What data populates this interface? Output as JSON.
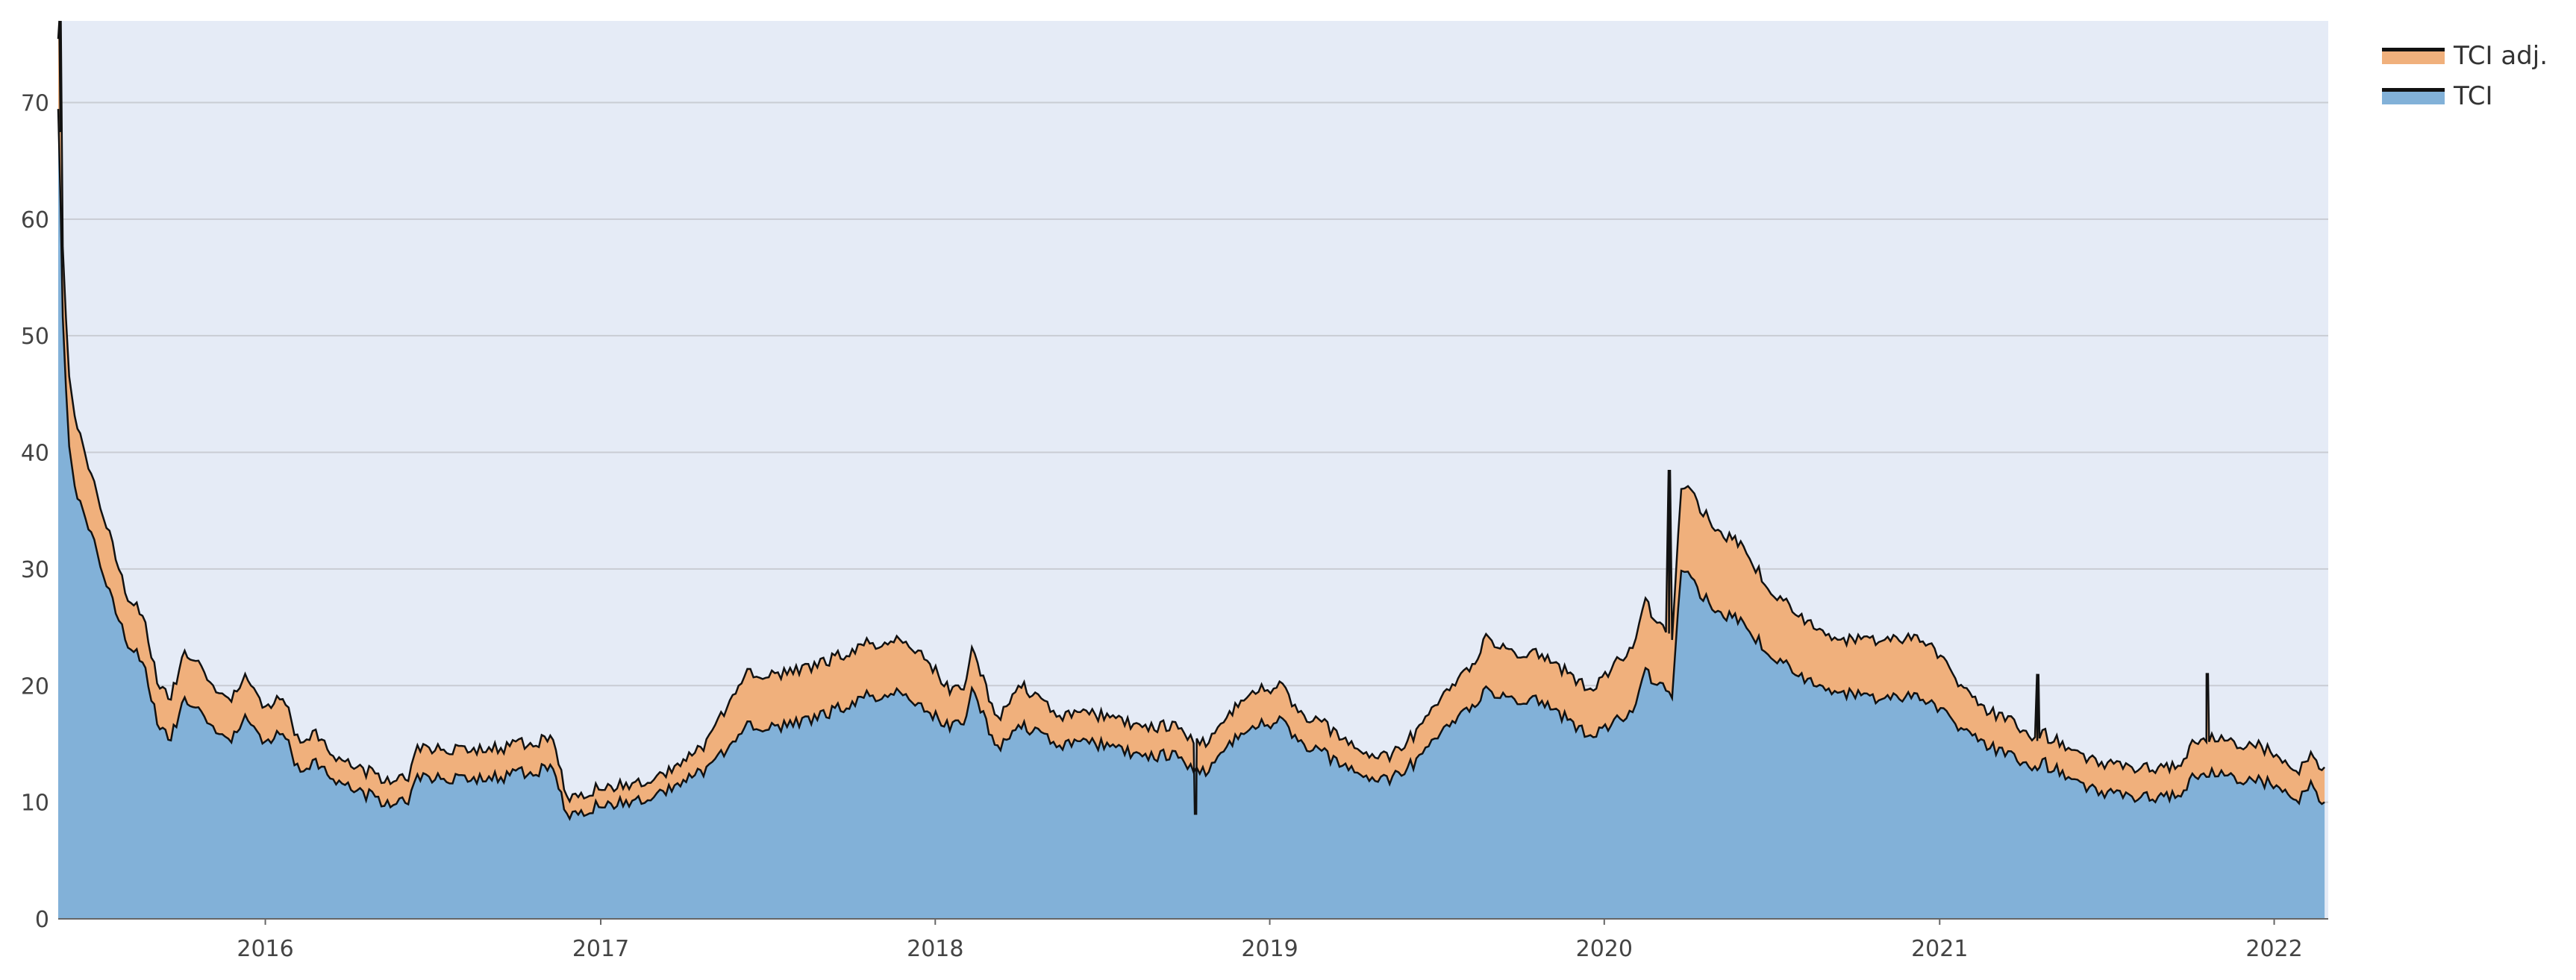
{
  "chart_data": {
    "type": "area",
    "stacked": true,
    "title": "",
    "xlabel": "",
    "ylabel": "",
    "xlim": [
      "2015-05-20",
      "2022-03-01"
    ],
    "ylim": [
      0,
      77
    ],
    "grid": true,
    "legend_position": "top-right",
    "y_ticks": [
      0,
      10,
      20,
      30,
      40,
      50,
      60,
      70
    ],
    "x_ticks": [
      {
        "label": "2016",
        "date": "2016-01-01"
      },
      {
        "label": "2017",
        "date": "2017-01-01"
      },
      {
        "label": "2018",
        "date": "2018-01-01"
      },
      {
        "label": "2019",
        "date": "2019-01-01"
      },
      {
        "label": "2020",
        "date": "2020-01-01"
      },
      {
        "label": "2021",
        "date": "2021-01-01"
      },
      {
        "label": "2022",
        "date": "2022-01-01"
      }
    ],
    "x": [
      "2015-05-20",
      "2015-05-25",
      "2015-06-01",
      "2015-06-10",
      "2015-06-25",
      "2015-07-15",
      "2015-08-01",
      "2015-08-20",
      "2015-09-05",
      "2015-09-20",
      "2015-10-05",
      "2015-10-20",
      "2015-11-05",
      "2015-11-25",
      "2015-12-10",
      "2016-01-01",
      "2016-01-20",
      "2016-02-05",
      "2016-02-25",
      "2016-03-15",
      "2016-04-10",
      "2016-05-10",
      "2016-06-05",
      "2016-06-15",
      "2016-07-20",
      "2016-09-01",
      "2016-10-10",
      "2016-11-10",
      "2016-11-25",
      "2016-12-20",
      "2017-02-01",
      "2017-03-10",
      "2017-04-20",
      "2017-05-25",
      "2017-06-10",
      "2017-07-20",
      "2017-09-01",
      "2017-10-15",
      "2017-11-20",
      "2017-12-20",
      "2018-01-20",
      "2018-02-01",
      "2018-02-10",
      "2018-03-10",
      "2018-04-05",
      "2018-04-20",
      "2018-05-20",
      "2018-07-01",
      "2018-08-15",
      "2018-09-20",
      "2018-10-10",
      "2018-10-20",
      "2018-11-15",
      "2018-12-10",
      "2019-01-15",
      "2019-02-01",
      "2019-03-05",
      "2019-04-10",
      "2019-05-15",
      "2019-06-10",
      "2019-07-10",
      "2019-08-10",
      "2019-08-25",
      "2019-09-25",
      "2019-10-25",
      "2019-11-25",
      "2019-12-20",
      "2020-01-15",
      "2020-02-01",
      "2020-02-15",
      "2020-03-05",
      "2020-03-15",
      "2020-03-25",
      "2020-04-05",
      "2020-05-01",
      "2020-06-01",
      "2020-07-01",
      "2020-08-10",
      "2020-09-15",
      "2020-10-20",
      "2020-12-01",
      "2020-12-20",
      "2021-01-15",
      "2021-02-15",
      "2021-03-20",
      "2021-04-15",
      "2021-04-20",
      "2021-05-15",
      "2021-06-20",
      "2021-07-20",
      "2021-08-15",
      "2021-09-15",
      "2021-10-10",
      "2021-10-25",
      "2021-11-01",
      "2021-11-25",
      "2021-12-15",
      "2022-01-10",
      "2022-01-25",
      "2022-02-10",
      "2022-02-25"
    ],
    "series": [
      {
        "name": "TCI",
        "color": "#82b1d8",
        "values": [
          70,
          52,
          40,
          36,
          33,
          28,
          24,
          22,
          17,
          15.5,
          19,
          18,
          16,
          15.5,
          17.5,
          15,
          16,
          13,
          13.5,
          12,
          11,
          10,
          10,
          12,
          12,
          12,
          12.5,
          13,
          9,
          9.5,
          10,
          11,
          12.5,
          15,
          16.5,
          16.5,
          17.5,
          19,
          19.5,
          18,
          16.5,
          17,
          19.5,
          14.5,
          16.5,
          16,
          15,
          15,
          14,
          14,
          13,
          12.5,
          15,
          16.5,
          17,
          15,
          14,
          12,
          12,
          13.5,
          16,
          18.5,
          19.5,
          19,
          18.5,
          17,
          15.5,
          17,
          17.5,
          21,
          20,
          19,
          30,
          29,
          26.5,
          25.5,
          22.5,
          20.5,
          19.5,
          19,
          19,
          18.5,
          17,
          15,
          14,
          13,
          13.5,
          12.5,
          11,
          10.5,
          10.5,
          10.5,
          12.5,
          12.5,
          12.5,
          12,
          12,
          11,
          10,
          11.5,
          10
        ]
      },
      {
        "name": "TCI adj.",
        "color": "#f0b07c",
        "values": [
          6,
          6,
          6,
          6,
          5,
          5,
          4,
          4,
          3.5,
          3.5,
          4,
          4,
          3.5,
          3.5,
          3.5,
          3,
          3,
          2.5,
          2.5,
          2,
          2,
          2,
          2,
          2.5,
          2.5,
          2.5,
          2.5,
          2.5,
          1.5,
          1.5,
          1.5,
          1.5,
          2,
          4,
          4.5,
          4.5,
          4.5,
          4.5,
          4.5,
          4.5,
          3,
          3,
          3.5,
          2.5,
          3.5,
          3,
          2.5,
          2.5,
          2.5,
          2.5,
          2.5,
          2.5,
          2.5,
          3,
          3,
          2.5,
          2.5,
          2,
          2,
          2.5,
          3,
          3.5,
          4.5,
          4,
          4,
          4,
          4,
          5,
          5.5,
          6,
          5,
          5,
          7,
          7.5,
          7,
          6.5,
          5.5,
          5,
          4.5,
          5,
          5,
          5,
          4,
          3,
          3,
          2.5,
          2.5,
          2.5,
          2.5,
          2.5,
          2.5,
          2.5,
          3,
          3,
          3,
          3,
          3,
          2.5,
          2.5,
          2.5,
          3
        ]
      }
    ],
    "spikes": [
      {
        "date": "2015-05-22",
        "value": 77
      },
      {
        "date": "2018-10-12",
        "value": 9
      },
      {
        "date": "2020-03-12",
        "value": 38.5
      },
      {
        "date": "2021-04-18",
        "value": 21
      },
      {
        "date": "2021-10-20",
        "value": 21
      }
    ]
  }
}
